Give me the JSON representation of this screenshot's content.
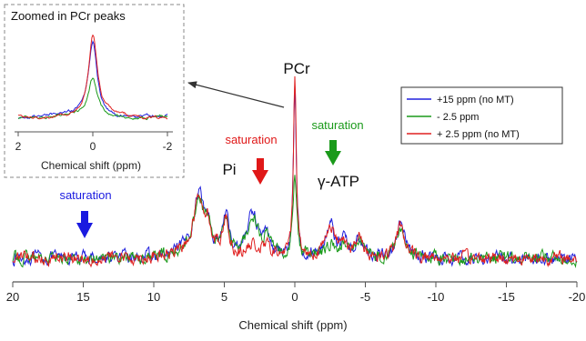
{
  "chart_data": {
    "type": "line",
    "title": "",
    "xlabel": "Chemical shift (ppm)",
    "ylabel": "",
    "xlim": [
      20,
      -20
    ],
    "x_reversed": true,
    "xticks": [
      "20",
      "15",
      "10",
      "5",
      "0",
      "-5",
      "-10",
      "-15",
      "-20"
    ],
    "xtick_values": [
      20,
      15,
      10,
      5,
      0,
      -5,
      -10,
      -15,
      -20
    ],
    "legend_position": "top-right",
    "series": [
      {
        "name": "+15 ppm (no MT)",
        "color": "#2020dd",
        "peaks": [
          {
            "x": 7.3,
            "h": 0.15,
            "w": 0.7
          },
          {
            "x": 6.8,
            "h": 0.62,
            "w": 0.35
          },
          {
            "x": 6.2,
            "h": 0.35,
            "w": 0.35
          },
          {
            "x": 4.9,
            "h": 0.45,
            "w": 0.28
          },
          {
            "x": 3.0,
            "h": 0.52,
            "w": 0.45
          },
          {
            "x": 2.0,
            "h": 0.2,
            "w": 0.4
          },
          {
            "x": 0.0,
            "h": 2.05,
            "w": 0.12
          },
          {
            "x": -2.5,
            "h": 0.42,
            "w": 0.35
          },
          {
            "x": -3.5,
            "h": 0.2,
            "w": 0.3
          },
          {
            "x": -4.6,
            "h": 0.22,
            "w": 0.3
          },
          {
            "x": -7.5,
            "h": 0.4,
            "w": 0.35
          }
        ]
      },
      {
        "name": "- 2.5 ppm",
        "color": "#1a9a1a",
        "peaks": [
          {
            "x": 7.3,
            "h": 0.15,
            "w": 0.7
          },
          {
            "x": 6.8,
            "h": 0.58,
            "w": 0.35
          },
          {
            "x": 6.2,
            "h": 0.3,
            "w": 0.35
          },
          {
            "x": 4.9,
            "h": 0.42,
            "w": 0.28
          },
          {
            "x": 3.0,
            "h": 0.48,
            "w": 0.45
          },
          {
            "x": 2.0,
            "h": 0.18,
            "w": 0.4
          },
          {
            "x": 0.0,
            "h": 1.0,
            "w": 0.15
          },
          {
            "x": -2.5,
            "h": 0.15,
            "w": 0.35
          },
          {
            "x": -3.5,
            "h": 0.15,
            "w": 0.3
          },
          {
            "x": -4.6,
            "h": 0.2,
            "w": 0.3
          },
          {
            "x": -7.5,
            "h": 0.36,
            "w": 0.35
          }
        ]
      },
      {
        "name": "+ 2.5 ppm (no MT)",
        "color": "#e02020",
        "peaks": [
          {
            "x": 7.3,
            "h": 0.15,
            "w": 0.7
          },
          {
            "x": 6.8,
            "h": 0.6,
            "w": 0.35
          },
          {
            "x": 6.2,
            "h": 0.33,
            "w": 0.35
          },
          {
            "x": 4.9,
            "h": 0.44,
            "w": 0.28
          },
          {
            "x": 3.0,
            "h": 0.12,
            "w": 0.45
          },
          {
            "x": 2.0,
            "h": 0.12,
            "w": 0.4
          },
          {
            "x": 0.0,
            "h": 2.2,
            "w": 0.12
          },
          {
            "x": -2.5,
            "h": 0.4,
            "w": 0.35
          },
          {
            "x": -3.5,
            "h": 0.2,
            "w": 0.3
          },
          {
            "x": -4.6,
            "h": 0.22,
            "w": 0.3
          },
          {
            "x": -7.5,
            "h": 0.38,
            "w": 0.35
          }
        ]
      }
    ],
    "annotations": [
      {
        "id": "pcr",
        "text": "PCr",
        "x": 0.0
      },
      {
        "id": "pi",
        "text": "Pi",
        "x": 4.9
      },
      {
        "id": "gatp",
        "text": "γ-ATP",
        "x": -2.5
      },
      {
        "id": "sat-blue",
        "text": "saturation",
        "x": 15,
        "color": "#1a1ae0"
      },
      {
        "id": "sat-red",
        "text": "saturation",
        "x": 2.5,
        "color": "#e01818"
      },
      {
        "id": "sat-green",
        "text": "saturation",
        "x": -2.5,
        "color": "#1a9a1a"
      }
    ],
    "inset": {
      "title": "Zoomed in PCr peaks",
      "xlabel": "Chemical shift (ppm)",
      "xlim": [
        2,
        -2
      ],
      "xticks": [
        "2",
        "0",
        "-2"
      ],
      "xtick_values": [
        2,
        0,
        -2
      ]
    }
  }
}
